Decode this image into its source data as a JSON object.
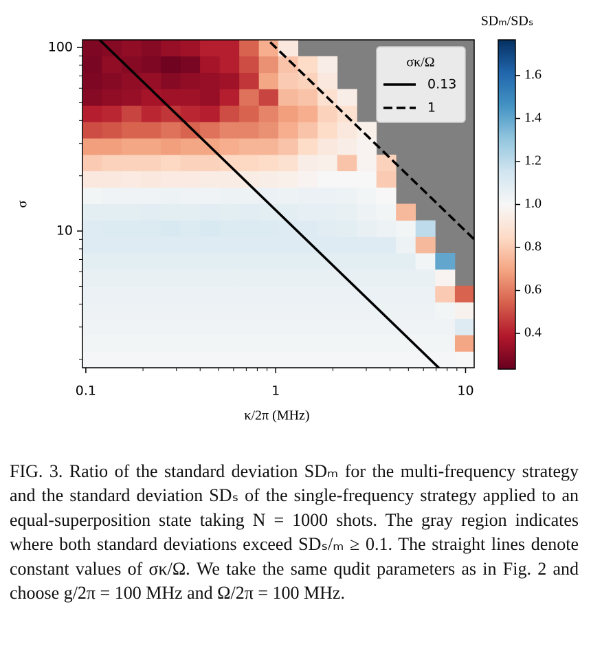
{
  "chart_data": {
    "type": "heatmap",
    "xlabel": "κ/2π (MHz)",
    "ylabel": "σ",
    "xscale": "log",
    "yscale": "log",
    "xlim": [
      0.096,
      11.1
    ],
    "ylim": [
      1.8,
      110
    ],
    "xticks": [
      0.1,
      1,
      10
    ],
    "yticks": [
      10,
      100
    ],
    "xminor": [
      0.2,
      0.3,
      0.4,
      0.5,
      0.6,
      0.7,
      0.8,
      0.9,
      2,
      3,
      4,
      5,
      6,
      7,
      8,
      9
    ],
    "yminor": [
      2,
      3,
      4,
      5,
      6,
      7,
      8,
      9,
      20,
      30,
      40,
      50,
      60,
      70,
      80,
      90
    ],
    "x": [
      0.108,
      0.137,
      0.174,
      0.221,
      0.28,
      0.355,
      0.45,
      0.571,
      0.724,
      0.918,
      1.16,
      1.48,
      1.87,
      2.38,
      3.01,
      3.82,
      4.84,
      6.14,
      7.8,
      9.89
    ],
    "y": [
      1.99,
      2.45,
      3.01,
      3.7,
      4.54,
      5.58,
      6.85,
      8.42,
      10.3,
      12.7,
      15.6,
      19.2,
      23.5,
      28.9,
      35.5,
      43.6,
      53.6,
      65.8,
      80.9,
      99.3
    ],
    "z": [
      [
        1.01,
        1.01,
        1.01,
        1.01,
        1.01,
        1.01,
        1.01,
        1.01,
        1.01,
        1.01,
        1.01,
        1.01,
        1.01,
        1.01,
        1.01,
        1.01,
        1.01,
        1.01,
        1.01,
        1.0
      ],
      [
        1.02,
        1.02,
        1.02,
        1.02,
        1.02,
        1.02,
        1.02,
        1.02,
        1.02,
        1.02,
        1.02,
        1.02,
        1.02,
        1.02,
        1.02,
        1.02,
        1.02,
        1.02,
        1.02,
        0.7
      ],
      [
        1.03,
        1.03,
        1.03,
        1.03,
        1.03,
        1.03,
        1.03,
        1.03,
        1.03,
        1.03,
        1.03,
        1.03,
        1.03,
        1.03,
        1.03,
        1.03,
        1.03,
        1.03,
        1.03,
        1.1
      ],
      [
        1.04,
        1.04,
        1.04,
        1.04,
        1.04,
        1.04,
        1.04,
        1.04,
        1.04,
        1.04,
        1.04,
        1.04,
        1.04,
        1.04,
        1.04,
        1.04,
        1.04,
        1.04,
        1.02,
        0.97
      ],
      [
        1.05,
        1.05,
        1.05,
        1.05,
        1.05,
        1.05,
        1.05,
        1.05,
        1.05,
        1.05,
        1.05,
        1.05,
        1.05,
        1.05,
        1.05,
        1.05,
        1.05,
        1.05,
        0.8,
        0.55
      ],
      [
        1.06,
        1.06,
        1.06,
        1.06,
        1.06,
        1.06,
        1.06,
        1.06,
        1.06,
        1.06,
        1.06,
        1.06,
        1.06,
        1.06,
        1.06,
        1.06,
        1.06,
        1.06,
        0.98,
        null
      ],
      [
        1.08,
        1.08,
        1.08,
        1.08,
        1.08,
        1.08,
        1.08,
        1.08,
        1.08,
        1.08,
        1.08,
        1.08,
        1.08,
        1.08,
        1.08,
        1.08,
        1.08,
        1.02,
        1.4,
        null
      ],
      [
        1.1,
        1.1,
        1.1,
        1.1,
        1.1,
        1.1,
        1.1,
        1.1,
        1.1,
        1.1,
        1.1,
        1.1,
        1.1,
        1.1,
        1.1,
        1.1,
        1.04,
        0.75,
        null,
        null
      ],
      [
        1.1,
        1.11,
        1.11,
        1.11,
        1.12,
        1.11,
        1.12,
        1.11,
        1.11,
        1.11,
        1.1,
        1.1,
        1.09,
        1.08,
        1.06,
        1.04,
        1.02,
        1.2,
        null,
        null
      ],
      [
        1.08,
        1.08,
        1.08,
        1.09,
        1.08,
        1.08,
        1.09,
        1.08,
        1.09,
        1.08,
        1.08,
        1.07,
        1.07,
        1.06,
        1.04,
        1.02,
        0.75,
        null,
        null,
        null
      ],
      [
        1.02,
        1.03,
        1.03,
        1.03,
        1.04,
        1.03,
        1.03,
        1.04,
        1.04,
        1.05,
        1.04,
        1.05,
        1.05,
        1.04,
        1.02,
        1.0,
        null,
        null,
        null,
        null
      ],
      [
        0.92,
        0.92,
        0.93,
        0.92,
        0.93,
        0.93,
        0.94,
        0.94,
        0.94,
        0.95,
        0.96,
        0.98,
        1.0,
        1.0,
        1.0,
        0.8,
        null,
        null,
        null,
        null
      ],
      [
        0.8,
        0.82,
        0.82,
        0.82,
        0.84,
        0.82,
        0.82,
        0.84,
        0.84,
        0.85,
        0.88,
        0.95,
        0.96,
        0.78,
        0.98,
        0.82,
        null,
        null,
        null,
        null
      ],
      [
        0.68,
        0.68,
        0.7,
        0.7,
        0.68,
        0.7,
        0.7,
        0.72,
        0.74,
        0.74,
        0.78,
        0.85,
        0.92,
        0.95,
        0.98,
        null,
        null,
        null,
        null,
        null
      ],
      [
        0.5,
        0.52,
        0.55,
        0.55,
        0.58,
        0.55,
        0.58,
        0.62,
        0.62,
        0.65,
        0.72,
        0.78,
        0.85,
        0.92,
        0.96,
        null,
        null,
        null,
        null,
        null
      ],
      [
        0.4,
        0.42,
        0.48,
        0.42,
        0.45,
        0.42,
        0.4,
        0.5,
        0.55,
        0.62,
        0.68,
        0.72,
        0.82,
        0.88,
        null,
        null,
        null,
        null,
        null,
        null
      ],
      [
        0.3,
        0.32,
        0.33,
        0.36,
        0.35,
        0.35,
        0.33,
        0.4,
        0.58,
        0.48,
        0.75,
        0.78,
        0.88,
        0.95,
        null,
        null,
        null,
        null,
        null,
        null
      ],
      [
        0.28,
        0.3,
        0.32,
        0.33,
        0.3,
        0.32,
        0.33,
        0.35,
        0.45,
        0.7,
        0.8,
        0.82,
        0.92,
        null,
        null,
        null,
        null,
        null,
        null,
        null
      ],
      [
        0.27,
        0.32,
        0.3,
        0.28,
        0.25,
        0.27,
        0.36,
        0.4,
        0.5,
        0.65,
        0.78,
        0.85,
        0.95,
        null,
        null,
        null,
        null,
        null,
        null,
        null
      ],
      [
        0.28,
        0.3,
        0.32,
        0.3,
        0.33,
        0.35,
        0.4,
        0.4,
        0.55,
        0.72,
        0.92,
        null,
        null,
        null,
        null,
        null,
        null,
        null,
        null,
        null
      ]
    ],
    "colormap": "RdBu",
    "nan_color": "#808080",
    "clim": [
      0.234,
      1.766
    ],
    "cticks": [
      0.4,
      0.6,
      0.8,
      1.0,
      1.2,
      1.4,
      1.6
    ],
    "colorbar_label": "SDₘ/SDₛ",
    "omega": 100,
    "legend_title": "σκ/Ω",
    "legend_loc": "upper right",
    "lines": [
      {
        "name": "0.13",
        "value": 0.13,
        "style": "solid",
        "color": "#000000"
      },
      {
        "name": "1",
        "value": 1,
        "style": "dashed",
        "color": "#000000"
      }
    ]
  },
  "caption": "FIG. 3. Ratio of the standard deviation SDₘ for the multi-frequency strategy and the standard deviation SDₛ of the single-frequency strategy applied to an equal-superposition state taking N = 1000 shots. The gray region indicates where both standard deviations exceed SDₛ/ₘ ≥ 0.1. The straight lines denote constant values of σκ/Ω. We take the same qudit parameters as in Fig. 2 and choose g/2π = 100 MHz and Ω/2π = 100 MHz."
}
